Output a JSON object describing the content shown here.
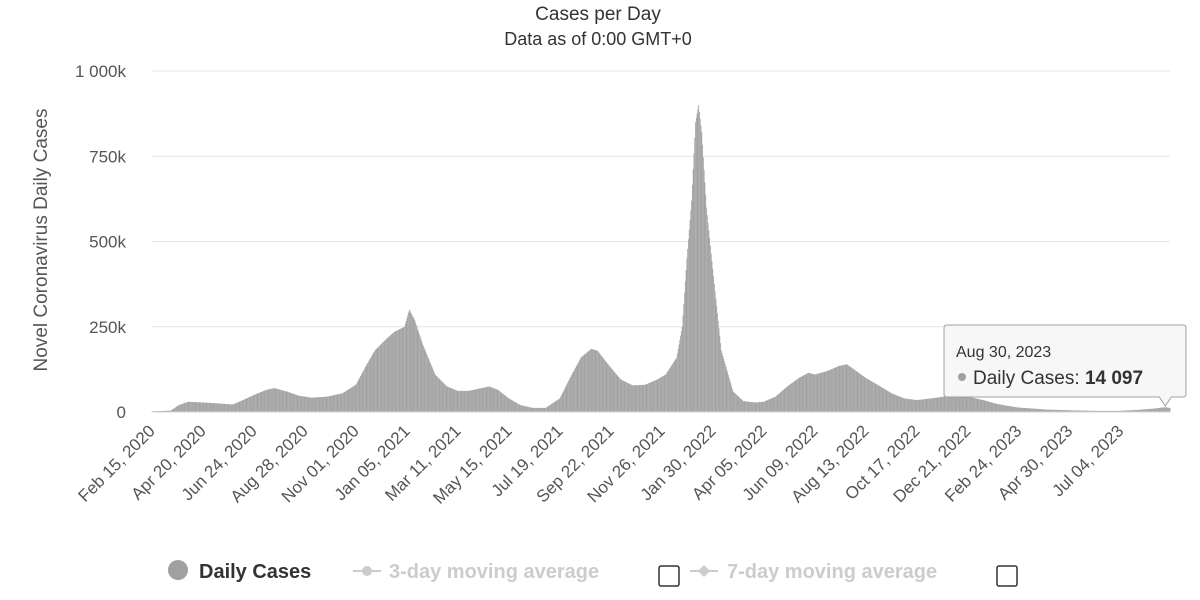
{
  "chart_data": {
    "type": "bar",
    "title": "Cases per Day",
    "subtitle": "Data as of 0:00 GMT+0",
    "ylabel": "Novel Coronavirus Daily Cases",
    "xlabel": "",
    "ylim": [
      0,
      1000000
    ],
    "y_ticks": [
      {
        "value": 0,
        "label": "0"
      },
      {
        "value": 250000,
        "label": "250k"
      },
      {
        "value": 500000,
        "label": "500k"
      },
      {
        "value": 750000,
        "label": "750k"
      },
      {
        "value": 1000000,
        "label": "1 000k"
      }
    ],
    "x_range": [
      "2020-02-15",
      "2023-09-05"
    ],
    "x_ticks": [
      {
        "date": "2020-02-15",
        "label": "Feb 15, 2020"
      },
      {
        "date": "2020-04-20",
        "label": "Apr 20, 2020"
      },
      {
        "date": "2020-06-24",
        "label": "Jun 24, 2020"
      },
      {
        "date": "2020-08-28",
        "label": "Aug 28, 2020"
      },
      {
        "date": "2020-11-01",
        "label": "Nov 01, 2020"
      },
      {
        "date": "2021-01-05",
        "label": "Jan 05, 2021"
      },
      {
        "date": "2021-03-11",
        "label": "Mar 11, 2021"
      },
      {
        "date": "2021-05-15",
        "label": "May 15, 2021"
      },
      {
        "date": "2021-07-19",
        "label": "Jul 19, 2021"
      },
      {
        "date": "2021-09-22",
        "label": "Sep 22, 2021"
      },
      {
        "date": "2021-11-26",
        "label": "Nov 26, 2021"
      },
      {
        "date": "2022-01-30",
        "label": "Jan 30, 2022"
      },
      {
        "date": "2022-04-05",
        "label": "Apr 05, 2022"
      },
      {
        "date": "2022-06-09",
        "label": "Jun 09, 2022"
      },
      {
        "date": "2022-08-13",
        "label": "Aug 13, 2022"
      },
      {
        "date": "2022-10-17",
        "label": "Oct 17, 2022"
      },
      {
        "date": "2022-12-21",
        "label": "Dec 21, 2022"
      },
      {
        "date": "2023-02-24",
        "label": "Feb 24, 2023"
      },
      {
        "date": "2023-04-30",
        "label": "Apr 30, 2023"
      },
      {
        "date": "2023-07-04",
        "label": "Jul 04, 2023"
      }
    ],
    "series": [
      {
        "name": "Daily Cases",
        "color": "#a0a0a0",
        "visible": true,
        "points": [
          {
            "date": "2020-02-15",
            "value": 2000
          },
          {
            "date": "2020-03-10",
            "value": 4000
          },
          {
            "date": "2020-03-20",
            "value": 20000
          },
          {
            "date": "2020-04-01",
            "value": 30000
          },
          {
            "date": "2020-04-20",
            "value": 28000
          },
          {
            "date": "2020-05-10",
            "value": 25000
          },
          {
            "date": "2020-05-28",
            "value": 22000
          },
          {
            "date": "2020-06-10",
            "value": 35000
          },
          {
            "date": "2020-06-24",
            "value": 50000
          },
          {
            "date": "2020-07-10",
            "value": 65000
          },
          {
            "date": "2020-07-20",
            "value": 70000
          },
          {
            "date": "2020-08-05",
            "value": 60000
          },
          {
            "date": "2020-08-20",
            "value": 48000
          },
          {
            "date": "2020-09-05",
            "value": 42000
          },
          {
            "date": "2020-09-25",
            "value": 45000
          },
          {
            "date": "2020-10-15",
            "value": 55000
          },
          {
            "date": "2020-11-01",
            "value": 80000
          },
          {
            "date": "2020-11-15",
            "value": 140000
          },
          {
            "date": "2020-11-25",
            "value": 180000
          },
          {
            "date": "2020-12-10",
            "value": 215000
          },
          {
            "date": "2020-12-20",
            "value": 235000
          },
          {
            "date": "2021-01-02",
            "value": 250000
          },
          {
            "date": "2021-01-08",
            "value": 300000
          },
          {
            "date": "2021-01-15",
            "value": 270000
          },
          {
            "date": "2021-01-25",
            "value": 200000
          },
          {
            "date": "2021-02-10",
            "value": 110000
          },
          {
            "date": "2021-02-25",
            "value": 75000
          },
          {
            "date": "2021-03-11",
            "value": 62000
          },
          {
            "date": "2021-03-25",
            "value": 62000
          },
          {
            "date": "2021-04-10",
            "value": 70000
          },
          {
            "date": "2021-04-20",
            "value": 75000
          },
          {
            "date": "2021-05-01",
            "value": 65000
          },
          {
            "date": "2021-05-15",
            "value": 40000
          },
          {
            "date": "2021-05-30",
            "value": 20000
          },
          {
            "date": "2021-06-15",
            "value": 12000
          },
          {
            "date": "2021-07-01",
            "value": 12000
          },
          {
            "date": "2021-07-19",
            "value": 40000
          },
          {
            "date": "2021-08-01",
            "value": 100000
          },
          {
            "date": "2021-08-15",
            "value": 160000
          },
          {
            "date": "2021-08-28",
            "value": 185000
          },
          {
            "date": "2021-09-05",
            "value": 180000
          },
          {
            "date": "2021-09-22",
            "value": 130000
          },
          {
            "date": "2021-10-05",
            "value": 95000
          },
          {
            "date": "2021-10-20",
            "value": 78000
          },
          {
            "date": "2021-11-05",
            "value": 80000
          },
          {
            "date": "2021-11-20",
            "value": 95000
          },
          {
            "date": "2021-12-01",
            "value": 110000
          },
          {
            "date": "2021-12-15",
            "value": 160000
          },
          {
            "date": "2021-12-22",
            "value": 250000
          },
          {
            "date": "2021-12-28",
            "value": 450000
          },
          {
            "date": "2022-01-03",
            "value": 620000
          },
          {
            "date": "2022-01-08",
            "value": 850000
          },
          {
            "date": "2022-01-12",
            "value": 900000
          },
          {
            "date": "2022-01-16",
            "value": 820000
          },
          {
            "date": "2022-01-22",
            "value": 600000
          },
          {
            "date": "2022-01-30",
            "value": 420000
          },
          {
            "date": "2022-02-10",
            "value": 180000
          },
          {
            "date": "2022-02-25",
            "value": 60000
          },
          {
            "date": "2022-03-10",
            "value": 32000
          },
          {
            "date": "2022-03-25",
            "value": 28000
          },
          {
            "date": "2022-04-05",
            "value": 30000
          },
          {
            "date": "2022-04-20",
            "value": 45000
          },
          {
            "date": "2022-05-05",
            "value": 75000
          },
          {
            "date": "2022-05-20",
            "value": 100000
          },
          {
            "date": "2022-06-01",
            "value": 115000
          },
          {
            "date": "2022-06-09",
            "value": 110000
          },
          {
            "date": "2022-06-25",
            "value": 120000
          },
          {
            "date": "2022-07-10",
            "value": 135000
          },
          {
            "date": "2022-07-20",
            "value": 140000
          },
          {
            "date": "2022-08-01",
            "value": 120000
          },
          {
            "date": "2022-08-13",
            "value": 100000
          },
          {
            "date": "2022-08-28",
            "value": 80000
          },
          {
            "date": "2022-09-15",
            "value": 55000
          },
          {
            "date": "2022-10-01",
            "value": 40000
          },
          {
            "date": "2022-10-17",
            "value": 35000
          },
          {
            "date": "2022-11-05",
            "value": 40000
          },
          {
            "date": "2022-11-20",
            "value": 45000
          },
          {
            "date": "2022-12-05",
            "value": 50000
          },
          {
            "date": "2022-12-21",
            "value": 45000
          },
          {
            "date": "2023-01-10",
            "value": 35000
          },
          {
            "date": "2023-01-25",
            "value": 25000
          },
          {
            "date": "2023-02-10",
            "value": 18000
          },
          {
            "date": "2023-02-24",
            "value": 13000
          },
          {
            "date": "2023-03-15",
            "value": 10000
          },
          {
            "date": "2023-04-01",
            "value": 7000
          },
          {
            "date": "2023-04-30",
            "value": 5000
          },
          {
            "date": "2023-05-20",
            "value": 4000
          },
          {
            "date": "2023-06-10",
            "value": 3000
          },
          {
            "date": "2023-07-04",
            "value": 3500
          },
          {
            "date": "2023-07-25",
            "value": 6000
          },
          {
            "date": "2023-08-15",
            "value": 10000
          },
          {
            "date": "2023-08-30",
            "value": 14097
          },
          {
            "date": "2023-09-05",
            "value": 12000
          }
        ]
      },
      {
        "name": "3-day moving average",
        "visible": false
      },
      {
        "name": "7-day moving average",
        "visible": false
      }
    ],
    "legend_position": "bottom",
    "grid": true
  },
  "tooltip": {
    "date": "Aug 30, 2023",
    "series_label": "Daily Cases",
    "value_label": "14 097",
    "value": 14097
  },
  "legend": {
    "items": [
      {
        "label": "Daily Cases",
        "active": true
      },
      {
        "label": "3-day moving average",
        "active": false
      },
      {
        "label": "7-day moving average",
        "active": false
      }
    ]
  }
}
